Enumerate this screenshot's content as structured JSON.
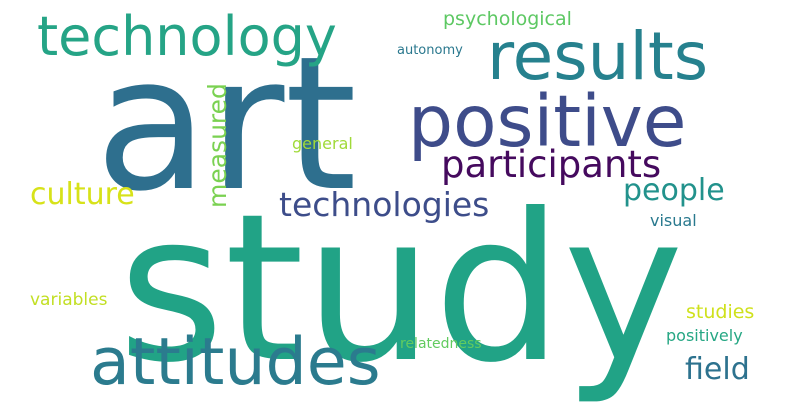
{
  "words": [
    {
      "id": "study",
      "text": "study",
      "color": "#21a386"
    },
    {
      "id": "art",
      "text": "art",
      "color": "#2e6f8e"
    },
    {
      "id": "positive",
      "text": "positive",
      "color": "#3e4c8a"
    },
    {
      "id": "results",
      "text": "results",
      "color": "#26818e"
    },
    {
      "id": "technology",
      "text": "technology",
      "color": "#25a486"
    },
    {
      "id": "attitudes",
      "text": "attitudes",
      "color": "#2b7b8e"
    },
    {
      "id": "participants",
      "text": "participants",
      "color": "#450a5e"
    },
    {
      "id": "technologies",
      "text": "technologies",
      "color": "#3d4d8a"
    },
    {
      "id": "people",
      "text": "people",
      "color": "#22928c"
    },
    {
      "id": "culture",
      "text": "culture",
      "color": "#d7e219"
    },
    {
      "id": "measured",
      "text": "measured",
      "color": "#7ad151"
    },
    {
      "id": "field",
      "text": "field",
      "color": "#2d728e"
    },
    {
      "id": "psychological",
      "text": "psychological",
      "color": "#5dc863"
    },
    {
      "id": "autonomy",
      "text": "autonomy",
      "color": "#2a788e"
    },
    {
      "id": "general",
      "text": "general",
      "color": "#a0da39"
    },
    {
      "id": "visual",
      "text": "visual",
      "color": "#29798e"
    },
    {
      "id": "variables",
      "text": "variables",
      "color": "#c2df23"
    },
    {
      "id": "studies",
      "text": "studies",
      "color": "#cfe11c"
    },
    {
      "id": "positively",
      "text": "positively",
      "color": "#26a784"
    },
    {
      "id": "relatedness",
      "text": "relatedness",
      "color": "#62cb5f"
    }
  ]
}
